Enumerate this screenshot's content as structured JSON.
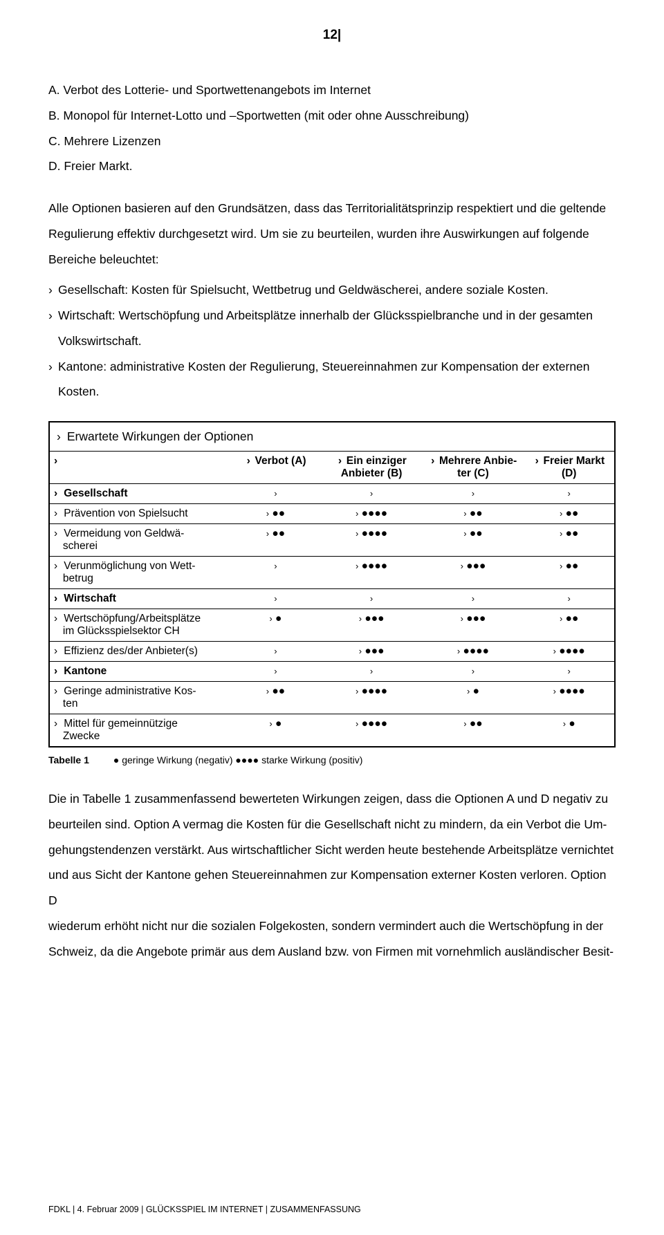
{
  "page_number": "12|",
  "options": {
    "a": "A. Verbot des Lotterie- und Sportwettenangebots im Internet",
    "b": "B. Monopol für Internet-Lotto und –Sportwetten (mit oder ohne Ausschreibung)",
    "c": "C. Mehrere Lizenzen",
    "d": "D. Freier Markt."
  },
  "para_intro_1": "Alle Optionen basieren auf den Grundsätzen, dass das Territorialitätsprinzip respektiert und die geltende",
  "para_intro_2": "Regulierung effektiv durchgesetzt wird. Um sie zu beurteilen, wurden ihre Auswirkungen auf folgende",
  "para_intro_3": "Bereiche beleuchtet:",
  "bullet1": "Gesellschaft: Kosten für Spielsucht, Wettbetrug und Geldwäscherei, andere soziale Kosten.",
  "bullet2a": "Wirtschaft: Wertschöpfung und Arbeitsplätze innerhalb der Glücksspielbranche und in der gesamten",
  "bullet2b": "Volkswirtschaft.",
  "bullet3a": "Kantone: administrative Kosten der Regulierung, Steuereinnahmen zur Kompensation der externen",
  "bullet3b": "Kosten.",
  "caret": "›",
  "table": {
    "title": "Erwartete Wirkungen der Optionen",
    "headers": {
      "h1": "",
      "h2": "Verbot (A)",
      "h3a": "Ein einziger",
      "h3b": "Anbieter (B)",
      "h4a": "Mehrere Anbie-",
      "h4b": "ter (C)",
      "h5": "Freier Markt (D)"
    },
    "rows": [
      {
        "label": "Gesellschaft",
        "bold": true,
        "a": "",
        "b": "",
        "c": "",
        "d": ""
      },
      {
        "label": "Prävention von Spielsucht",
        "a": "●●",
        "b": "●●●●",
        "c": "●●",
        "d": "●●"
      },
      {
        "label": "Vermeidung von Geldwäscherei",
        "label2": "scherei",
        "label1": "Vermeidung von Geldwä-",
        "a": "●●",
        "b": "●●●●",
        "c": "●●",
        "d": "●●"
      },
      {
        "label": "Verunmöglichung von Wettbetrug",
        "label1": "Verunmöglichung von Wett-",
        "label2": "betrug",
        "a": "",
        "b": "●●●●",
        "c": "●●●",
        "d": "●●"
      },
      {
        "label": "Wirtschaft",
        "bold": true,
        "a": "",
        "b": "",
        "c": "",
        "d": ""
      },
      {
        "label": "Wertschöpfung/Arbeitsplätze im Glücksspielsektor CH",
        "label1": "Wertschöpfung/Arbeitsplätze",
        "label2": "im Glücksspielsektor CH",
        "a": "●",
        "b": "●●●",
        "c": "●●●",
        "d": "●●"
      },
      {
        "label": "Effizienz des/der Anbieter(s)",
        "a": "",
        "b": "●●●",
        "c": "●●●●",
        "d": "●●●●"
      },
      {
        "label": "Kantone",
        "bold": true,
        "a": "",
        "b": "",
        "c": "",
        "d": ""
      },
      {
        "label": "Geringe administrative Kosten",
        "label1": "Geringe administrative Kos-",
        "label2": "ten",
        "a": "●●",
        "b": "●●●●",
        "c": "●",
        "d": "●●●●"
      },
      {
        "label": "Mittel für gemeinnützige Zwecke",
        "label1": "Mittel für gemeinnützige",
        "label2": "Zwecke",
        "a": "●",
        "b": "●●●●",
        "c": "●●",
        "d": "●"
      }
    ]
  },
  "caption_label": "Tabelle 1",
  "caption_text": "● geringe Wirkung (negativ) ●●●● starke Wirkung (positiv)",
  "closing_lines": [
    "Die in Tabelle 1 zusammenfassend bewerteten Wirkungen zeigen, dass die Optionen A und D negativ zu",
    "beurteilen sind. Option A vermag die Kosten für die Gesellschaft nicht zu mindern, da ein Verbot die Um-",
    "gehungstendenzen verstärkt. Aus wirtschaftlicher Sicht werden heute bestehende Arbeitsplätze vernichtet",
    "und aus Sicht der Kantone gehen Steuereinnahmen zur Kompensation externer Kosten verloren. Option D",
    "wiederum erhöht nicht nur die sozialen Folgekosten, sondern vermindert auch die Wertschöpfung in der",
    "Schweiz, da die Angebote primär aus dem Ausland bzw. von Firmen mit vornehmlich ausländischer Besit-"
  ],
  "footer": "FDKL | 4. Februar 2009 | GLÜCKSSPIEL IM INTERNET | ZUSAMMENFASSUNG"
}
